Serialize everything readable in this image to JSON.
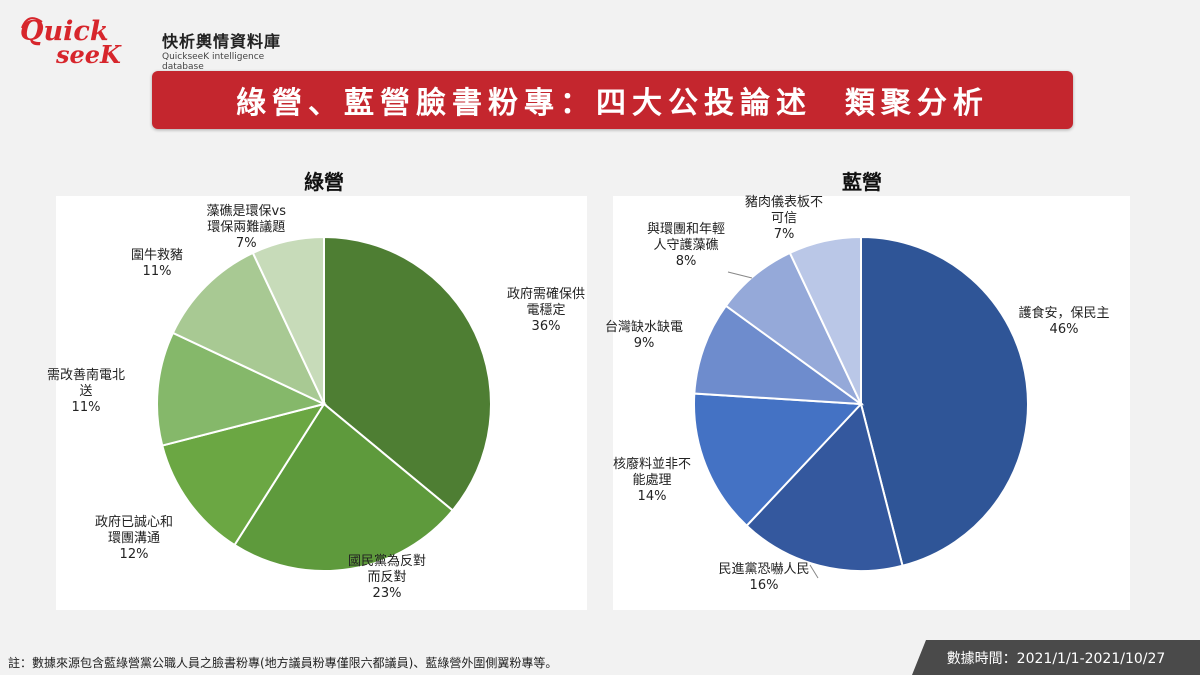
{
  "logo": {
    "word_1": "Quick",
    "word_2": "seeK",
    "name_cn": "快析輿情資料庫",
    "name_en": "QuickseeK intelligence database"
  },
  "banner_title": "綠營、藍營臉書粉專：四大公投論述  類聚分析",
  "chart_data": [
    {
      "type": "pie",
      "title": "綠營",
      "colors": [
        "#4e7e33",
        "#5e9a3c",
        "#6ba743",
        "#85b86a",
        "#a8c993",
        "#c7dbb9"
      ],
      "slices": [
        {
          "label": "政府需確保供電穩定",
          "label_lines": [
            "政府需確保供",
            "電穩定"
          ],
          "pct": "36%",
          "value": 36
        },
        {
          "label": "國民黨為反對而反對",
          "label_lines": [
            "國民黨為反對",
            "而反對"
          ],
          "pct": "23%",
          "value": 23
        },
        {
          "label": "政府已誠心和環團溝通",
          "label_lines": [
            "政府已誠心和",
            "環團溝通"
          ],
          "pct": "12%",
          "value": 12
        },
        {
          "label": "需改善南電北送",
          "label_lines": [
            "需改善南電北",
            "送"
          ],
          "pct": "11%",
          "value": 11
        },
        {
          "label": "圍牛救豬",
          "label_lines": [
            "圍牛救豬"
          ],
          "pct": "11%",
          "value": 11
        },
        {
          "label": "藻礁是環保vs環保兩難議題",
          "label_lines": [
            "藻礁是環保vs",
            "環保兩難議題"
          ],
          "pct": "7%",
          "value": 7
        }
      ]
    },
    {
      "type": "pie",
      "title": "藍營",
      "colors": [
        "#2f5597",
        "#34589e",
        "#4472c4",
        "#6e8ccd",
        "#95a9d9",
        "#bac7e7"
      ],
      "slices": [
        {
          "label": "護食安，保民主",
          "label_lines": [
            "護食安，保民主"
          ],
          "pct": "46%",
          "value": 46
        },
        {
          "label": "民進黨恐嚇人民",
          "label_lines": [
            "民進黨恐嚇人民"
          ],
          "pct": "16%",
          "value": 16
        },
        {
          "label": "核廢料並非不能處理",
          "label_lines": [
            "核廢料並非不",
            "能處理"
          ],
          "pct": "14%",
          "value": 14
        },
        {
          "label": "台灣缺水缺電",
          "label_lines": [
            "台灣缺水缺電"
          ],
          "pct": "9%",
          "value": 9
        },
        {
          "label": "與環團和年輕人守護藻礁",
          "label_lines": [
            "與環團和年輕",
            "人守護藻礁"
          ],
          "pct": "8%",
          "value": 8
        },
        {
          "label": "豬肉儀表板不可信",
          "label_lines": [
            "豬肉儀表板不",
            "可信"
          ],
          "pct": "7%",
          "value": 7
        }
      ]
    }
  ],
  "footnote": "註：數據來源包含藍綠營黨公職人員之臉書粉專(地方議員粉專僅限六都議員)、藍綠營外圍側翼粉專等。",
  "date_range": "數據時間：2021/1/1-2021/10/27"
}
